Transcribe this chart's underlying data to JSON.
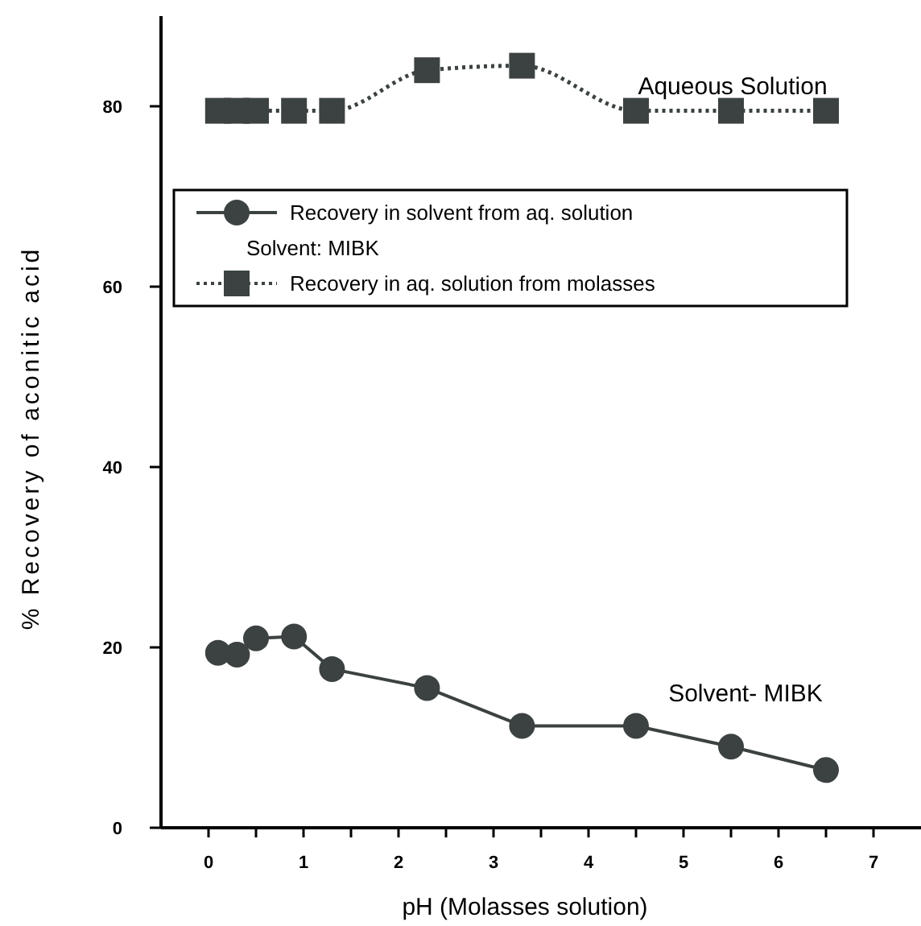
{
  "chart_data": {
    "type": "line",
    "xlabel": "pH (Molasses solution)",
    "ylabel": "% Recovery of aconitic acid",
    "xlim": [
      -0.5,
      7.5
    ],
    "ylim": [
      0,
      90
    ],
    "xticks": [
      0,
      {
        "value": 0.5,
        "label": null
      },
      1,
      {
        "value": 1.5,
        "label": null
      },
      2,
      {
        "value": 2.5,
        "label": null
      },
      3,
      {
        "value": 3.5,
        "label": null
      },
      4,
      {
        "value": 4.5,
        "label": null
      },
      5,
      {
        "value": 5.5,
        "label": null
      },
      6,
      {
        "value": 6.5,
        "label": null
      },
      7
    ],
    "yticks": [
      0,
      20,
      40,
      60,
      80
    ],
    "x": [
      0.1,
      0.3,
      0.5,
      0.9,
      1.3,
      2.3,
      3.3,
      4.5,
      5.5,
      6.5
    ],
    "series": [
      {
        "name": "Recovery in solvent from aq. solution",
        "color": "#3c4242",
        "marker": "circle",
        "line_style": "solid",
        "values": [
          19.4,
          19.2,
          21.0,
          21.2,
          17.6,
          15.5,
          11.3,
          11.3,
          9.0,
          6.4
        ]
      },
      {
        "name": "Recovery in aq. solution from molasses",
        "color": "#3c4242",
        "marker": "square",
        "line_style": "dotted",
        "values": [
          79.5,
          79.5,
          79.5,
          79.5,
          79.5,
          84.0,
          84.5,
          79.5,
          79.5,
          79.5
        ]
      }
    ],
    "legend": "top left",
    "annotations": [
      "Aqueous Solution",
      "Solvent- MIBK",
      "Solvent: MIBK"
    ]
  }
}
